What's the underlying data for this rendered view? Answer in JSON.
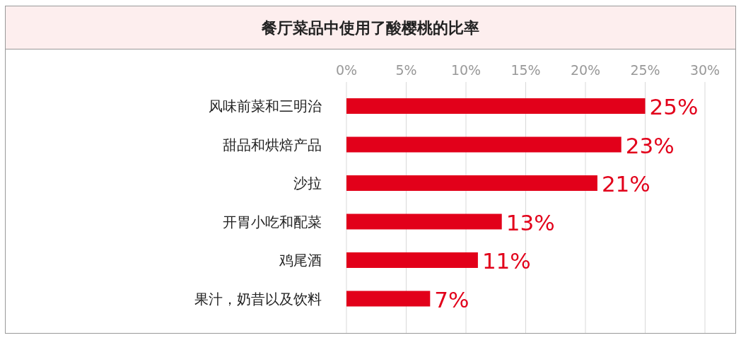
{
  "chart_data": {
    "type": "bar",
    "orientation": "horizontal",
    "title": "餐厅菜品中使用了酸樱桃的比率",
    "categories": [
      "风味前菜和三明治",
      "甜品和烘焙产品",
      "沙拉",
      "开胃小吃和配菜",
      "鸡尾酒",
      "果汁，奶昔以及饮料"
    ],
    "values": [
      25,
      23,
      21,
      13,
      11,
      7
    ],
    "value_labels": [
      "25%",
      "23%",
      "21%",
      "13%",
      "11%",
      "7%"
    ],
    "color": "#e2001a",
    "xlim": [
      0,
      30
    ],
    "xticks": [
      {
        "value": 0,
        "label": "0%"
      },
      {
        "value": 5,
        "label": "5%"
      },
      {
        "value": 10,
        "label": "10%"
      },
      {
        "value": 15,
        "label": "15%"
      },
      {
        "value": 20,
        "label": "20%"
      },
      {
        "value": 25,
        "label": "25%"
      },
      {
        "value": 30,
        "label": "30%"
      }
    ],
    "grid": "x"
  }
}
